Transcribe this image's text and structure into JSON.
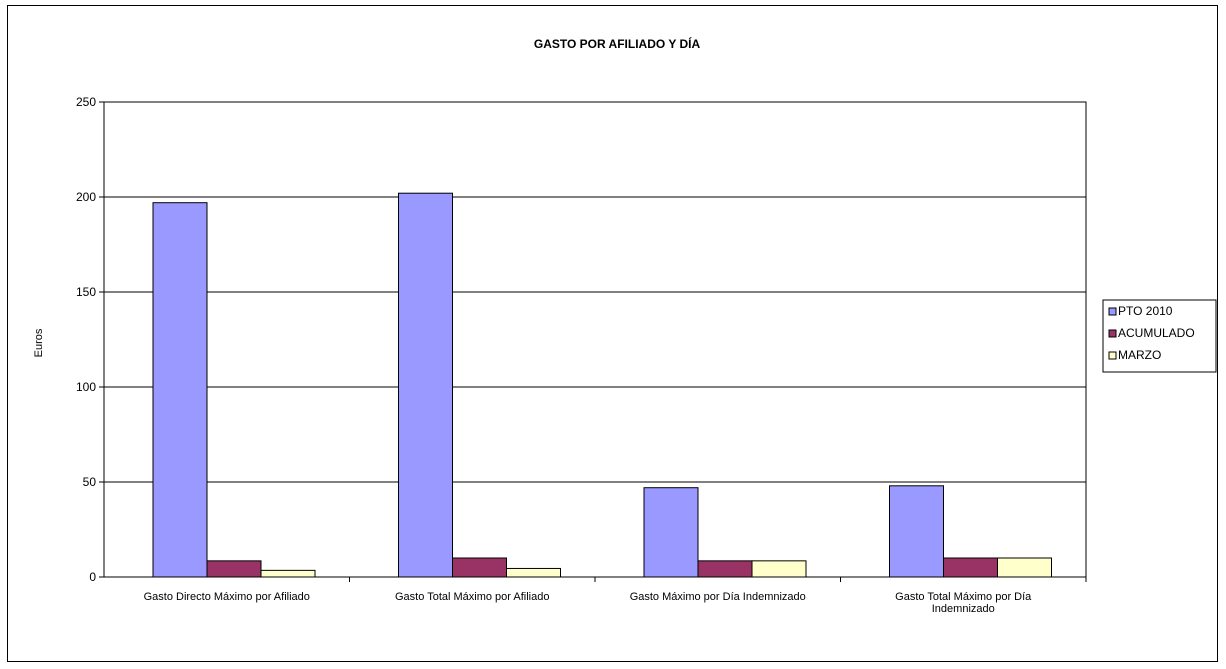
{
  "chart_data": {
    "type": "bar",
    "title": "GASTO POR AFILIADO Y DÍA",
    "ylabel": "Euros",
    "xlabel": "",
    "ylim": [
      0,
      250
    ],
    "yticks": [
      "0",
      "50",
      "100",
      "150",
      "200",
      "250"
    ],
    "grid": true,
    "legend_position": "right",
    "categories": [
      [
        "Gasto Directo Máximo  por Afiliado"
      ],
      [
        "Gasto Total Máximo  por Afiliado"
      ],
      [
        "Gasto Máximo por Día  Indemnizado"
      ],
      [
        "Gasto Total Máximo  por Día",
        "Indemnizado"
      ]
    ],
    "series": [
      {
        "name": "PTO 2010",
        "color": "#9999ff",
        "values": [
          197,
          202,
          47,
          48
        ]
      },
      {
        "name": "ACUMULADO",
        "color": "#993366",
        "values": [
          8.5,
          10,
          8.5,
          10
        ]
      },
      {
        "name": "MARZO",
        "color": "#ffffcc",
        "values": [
          3.5,
          4.5,
          8.5,
          10
        ]
      }
    ]
  }
}
